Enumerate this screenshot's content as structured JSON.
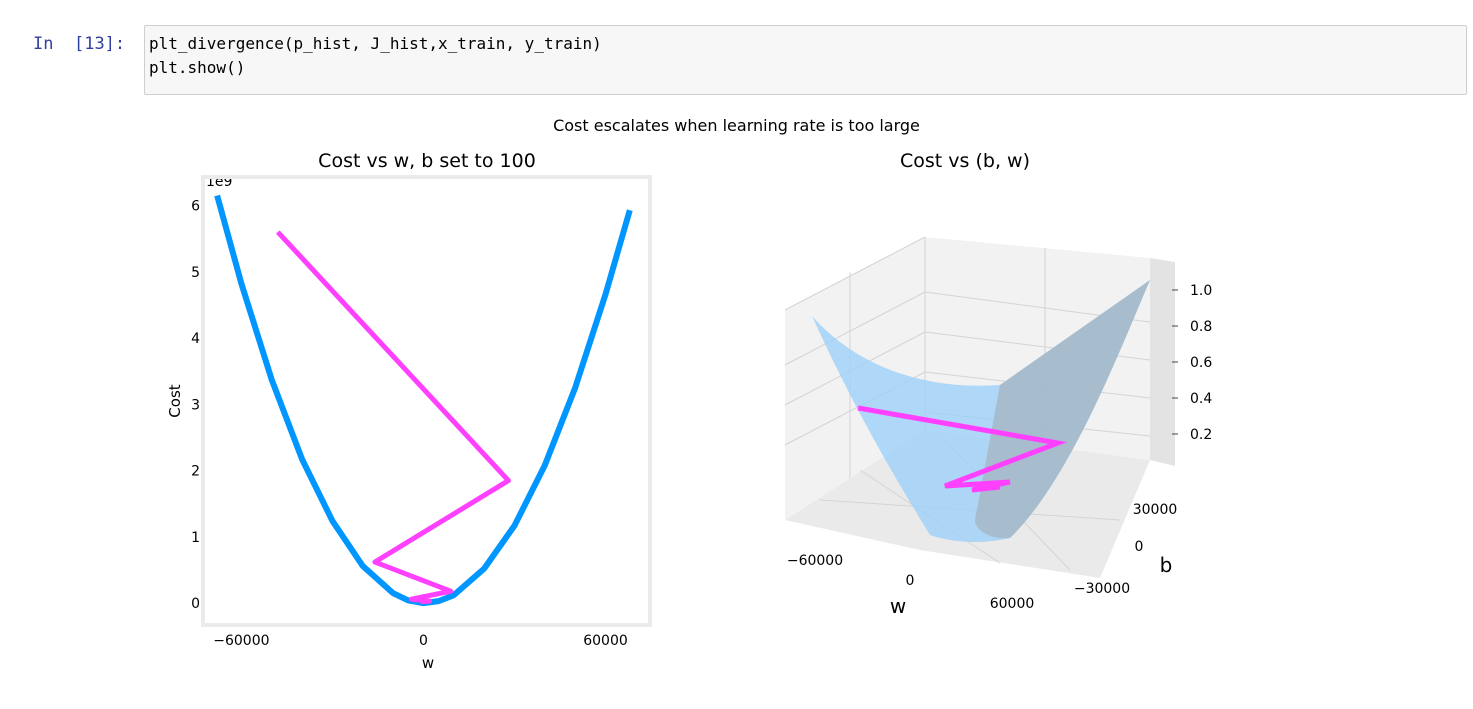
{
  "notebook": {
    "prompt_label": "In",
    "prompt_number": "[13]:",
    "code_lines": [
      "plt_divergence(p_hist, J_hist,x_train, y_train)",
      "plt.show()"
    ]
  },
  "colors": {
    "curve": "#0096ff",
    "path": "#ff40ff",
    "surface": "#9dd0f7"
  },
  "figure": {
    "suptitle": "Cost escalates when learning rate is too large"
  },
  "chart_data": [
    {
      "type": "line",
      "title": "Cost vs w, b set to 100",
      "xlabel": "w",
      "ylabel": "Cost",
      "y_scale_label": "1e9",
      "xlim": [
        -72000,
        74000
      ],
      "ylim": [
        -0.3,
        6.4
      ],
      "xticks": [
        -60000,
        0,
        60000
      ],
      "xtick_labels": [
        "−60000",
        "0",
        "60000"
      ],
      "yticks": [
        0,
        1,
        2,
        3,
        4,
        5,
        6
      ],
      "ytick_labels": [
        "0",
        "1",
        "2",
        "3",
        "4",
        "5",
        "6"
      ],
      "grid": false,
      "series": [
        {
          "kind": "cost-curve",
          "color": "#0096ff",
          "x": [
            -68000,
            -60000,
            -50000,
            -40000,
            -30000,
            -20000,
            -10000,
            -5000,
            0,
            5000,
            10000,
            20000,
            30000,
            40000,
            50000,
            60000,
            68000
          ],
          "y": [
            6.15,
            4.82,
            3.37,
            2.17,
            1.24,
            0.56,
            0.15,
            0.04,
            0.0,
            0.03,
            0.12,
            0.52,
            1.17,
            2.08,
            3.25,
            4.66,
            5.93
          ]
        },
        {
          "kind": "gradient-descent-path",
          "color": "#ff40ff",
          "x": [
            -48000,
            28000,
            -16000,
            9000,
            -4000,
            2000,
            -1000
          ],
          "y": [
            5.6,
            1.85,
            0.62,
            0.18,
            0.06,
            0.03,
            0.02
          ]
        }
      ]
    },
    {
      "type": "surface3d",
      "title": "Cost vs (b, w)",
      "xlabel": "w",
      "ylabel": "b",
      "zlabel": "",
      "xtick_labels": [
        "−60000",
        "0",
        "60000"
      ],
      "ytick_labels": [
        "−30000",
        "0",
        "30000"
      ],
      "ztick_labels": [
        "0.2",
        "0.4",
        "0.6",
        "0.8",
        "1.0"
      ],
      "grid": true,
      "path_color": "#ff40ff",
      "surface_color": "#9dd0f7"
    }
  ]
}
